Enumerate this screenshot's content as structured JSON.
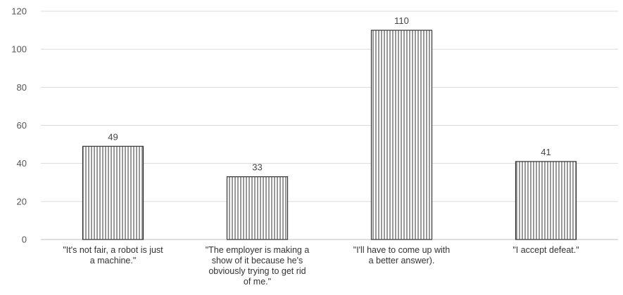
{
  "chart_data": {
    "type": "bar",
    "categories": [
      [
        "\"It's not fair, a robot is just",
        "a machine.\""
      ],
      [
        "\"The employer is making a",
        "show of it because he's",
        "obviously trying to get rid",
        "of me.\""
      ],
      [
        "\"I'll have to come up with",
        "a better answer)."
      ],
      [
        "\"I accept defeat.\""
      ]
    ],
    "values": [
      49,
      33,
      110,
      41
    ],
    "data_labels": [
      "49",
      "33",
      "110",
      "41"
    ],
    "y_ticks": [
      "0",
      "20",
      "40",
      "60",
      "80",
      "100",
      "120"
    ],
    "ylim": [
      0,
      120
    ],
    "grid": true,
    "legend": "none",
    "bar_fill": "vertical-hatch",
    "bar_stroke_color": "#333333",
    "gridline_color": "#d9d9d9"
  }
}
